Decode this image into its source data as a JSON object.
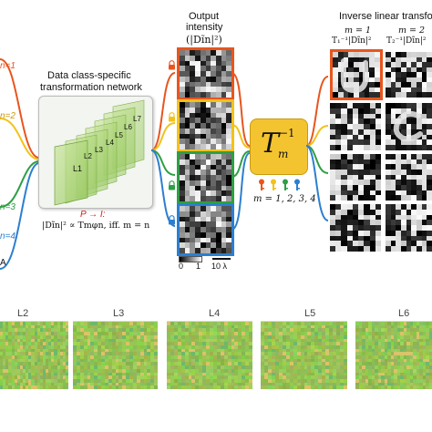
{
  "inputs": {
    "labels": [
      "n=1",
      "n=2",
      "n=3",
      "n=4"
    ],
    "colors": [
      "#e8551e",
      "#f2c21a",
      "#2e9f44",
      "#2b7fd0"
    ],
    "partial_letter": "A"
  },
  "network": {
    "title_line1": "Data class-specific",
    "title_line2": "transformation network",
    "layers": [
      "L1",
      "L2",
      "L3",
      "L4",
      "L5",
      "L6",
      "L7"
    ],
    "arrow_label": "P → I:",
    "condition": "|Dĩn|² ∝ Tmφn, iff. m = n"
  },
  "output": {
    "title_line1": "Output",
    "title_line2": "intensity",
    "title_line3": "(|Dĩn|²)",
    "colorbar_min": "0",
    "colorbar_max": "1",
    "scale_label": "10 λ",
    "frame_colors": [
      "#e8551e",
      "#f2c21a",
      "#2e9f44",
      "#2b7fd0"
    ],
    "icon": "lock-icon"
  },
  "inverse": {
    "symbol": "T",
    "superscript": "−1",
    "subscript": "m",
    "m_values": "m = 1, 2, 3, 4",
    "key_colors": [
      "#e8551e",
      "#f2c21a",
      "#2e9f44",
      "#2b7fd0"
    ],
    "box_color": "#f4c430"
  },
  "inverse_panel": {
    "title": "Inverse linear transfo",
    "col1_m": "m = 1",
    "col1_expr": "T₁⁻¹|Dĩn|²",
    "col2_m": "m = 2",
    "col2_expr": "T₂⁻¹|Dĩn|²",
    "frame_color": "#e8551e"
  },
  "layer_panels": {
    "labels": [
      "L2",
      "L3",
      "L4",
      "L5",
      "L6"
    ]
  }
}
